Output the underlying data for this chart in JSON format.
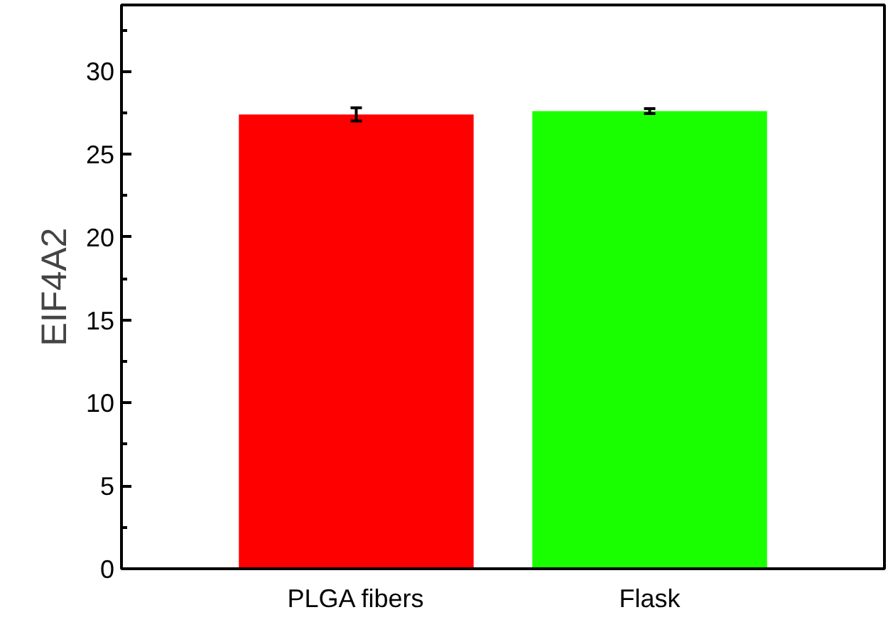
{
  "chart_data": {
    "type": "bar",
    "ylabel": "EIF4A2",
    "categories": [
      "PLGA fibers",
      "Flask"
    ],
    "values": [
      27.4,
      27.6
    ],
    "colors": [
      "#ff0000",
      "#1aff00"
    ],
    "errors": [
      0.4,
      0.15
    ],
    "ylim": [
      0,
      34
    ],
    "yticks": [
      0,
      5,
      10,
      15,
      20,
      25,
      30
    ],
    "grid": false
  }
}
